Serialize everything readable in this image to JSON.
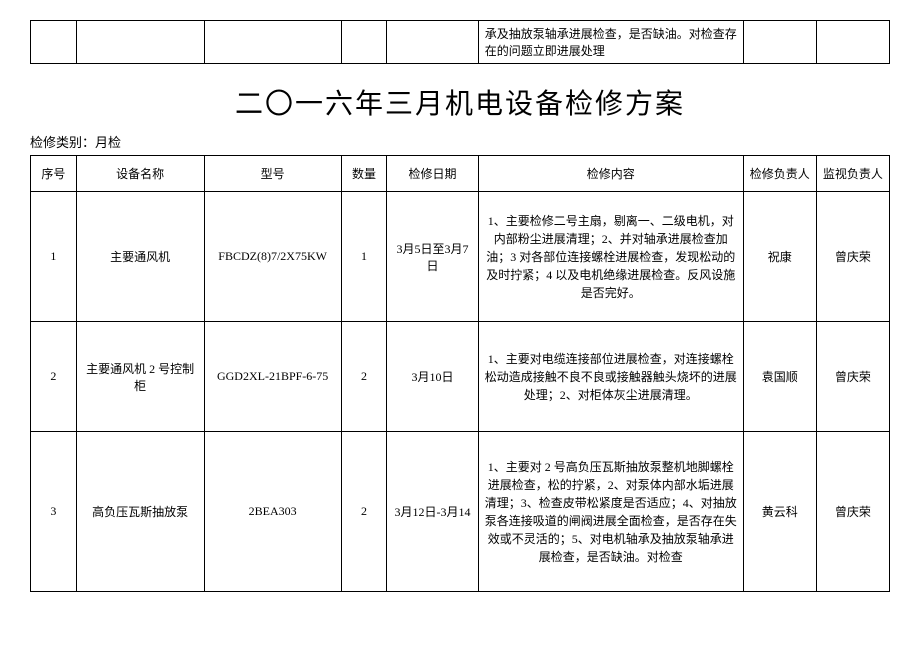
{
  "top_fragment_text": "承及抽放泵轴承进展检查，是否缺油。对检查存在的问题立即进展处理",
  "title": "二〇一六年三月机电设备检修方案",
  "subtitle": "检修类别：月检",
  "headers": {
    "seq": "序号",
    "name": "设备名称",
    "model": "型号",
    "qty": "数量",
    "date": "检修日期",
    "content": "检修内容",
    "resp": "检修负责人",
    "super": "监视负责人"
  },
  "rows": [
    {
      "seq": "1",
      "name": "主要通风机",
      "model": "FBCDZ(8)7/2X75KW",
      "qty": "1",
      "date": "3月5日至3月7日",
      "content": "1、主要检修二号主扇，剔离一、二级电机，对内部粉尘进展清理；2、并对轴承进展检查加油；3 对各部位连接螺栓进展检查，发现松动的及时拧紧；4 以及电机绝缘进展检查。反风设施是否完好。",
      "resp": "祝康",
      "super": "曾庆荣"
    },
    {
      "seq": "2",
      "name": "主要通风机 2 号控制柜",
      "model": "GGD2XL-21BPF-6-75",
      "qty": "2",
      "date": "3月10日",
      "content": "1、主要对电缆连接部位进展检查，对连接螺栓松动造成接触不良不良或接触器触头烧坏的进展处理；2、对柜体灰尘进展清理。",
      "resp": "袁国顺",
      "super": "曾庆荣"
    },
    {
      "seq": "3",
      "name": "高负压瓦斯抽放泵",
      "model": "2BEA303",
      "qty": "2",
      "date": "3月12日-3月14",
      "content": "1、主要对 2 号高负压瓦斯抽放泵整机地脚螺栓进展检查，松的拧紧，2、对泵体内部水垢进展清理；3、检查皮带松紧度是否适应；4、对抽放泵各连接吸道的闸阀进展全面检查，是否存在失效或不灵活的；5、对电机轴承及抽放泵轴承进展检查，是否缺油。对检查",
      "resp": "黄云科",
      "super": "曾庆荣"
    }
  ]
}
